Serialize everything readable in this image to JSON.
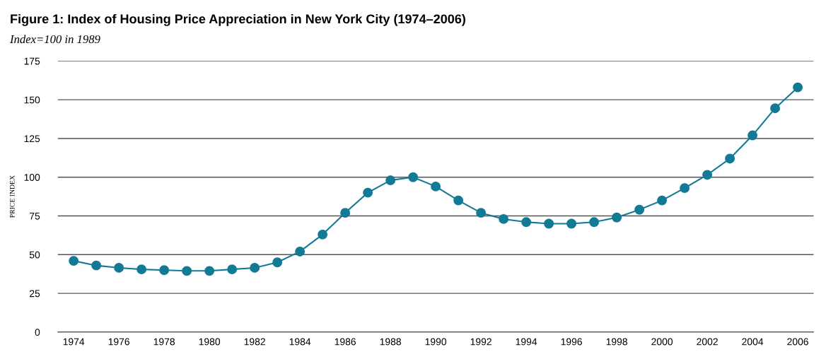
{
  "chart_data": {
    "type": "line",
    "title": "Figure 1: Index of Housing Price Appreciation in New York City (1974–2006)",
    "subtitle": "Index=100 in 1989",
    "ylabel": "PRICE INDEX",
    "x": [
      1974,
      1975,
      1976,
      1977,
      1978,
      1979,
      1980,
      1981,
      1982,
      1983,
      1984,
      1985,
      1986,
      1987,
      1988,
      1989,
      1990,
      1991,
      1992,
      1993,
      1994,
      1995,
      1996,
      1997,
      1998,
      1999,
      2000,
      2001,
      2002,
      2003,
      2004,
      2005,
      2006
    ],
    "series": [
      {
        "color": "#137a96",
        "values": [
          46,
          43,
          41.5,
          40.5,
          40,
          39.5,
          39.5,
          40.5,
          41.5,
          45,
          52,
          63,
          77,
          90,
          98,
          100,
          94,
          85,
          77,
          73,
          71,
          70,
          70,
          71,
          74,
          79,
          85,
          93,
          101.5,
          112,
          127,
          144.5,
          158
        ]
      }
    ],
    "xlim": [
      1973.3,
      2006.7
    ],
    "xticks": [
      1974,
      1976,
      1978,
      1980,
      1982,
      1984,
      1986,
      1988,
      1990,
      1992,
      1994,
      1996,
      1998,
      2000,
      2002,
      2004,
      2006
    ],
    "ylim": [
      0,
      175
    ],
    "yticks": [
      0,
      25,
      50,
      75,
      100,
      125,
      150,
      175
    ],
    "grid": "y",
    "marker": "circle",
    "line_style": "solid"
  }
}
